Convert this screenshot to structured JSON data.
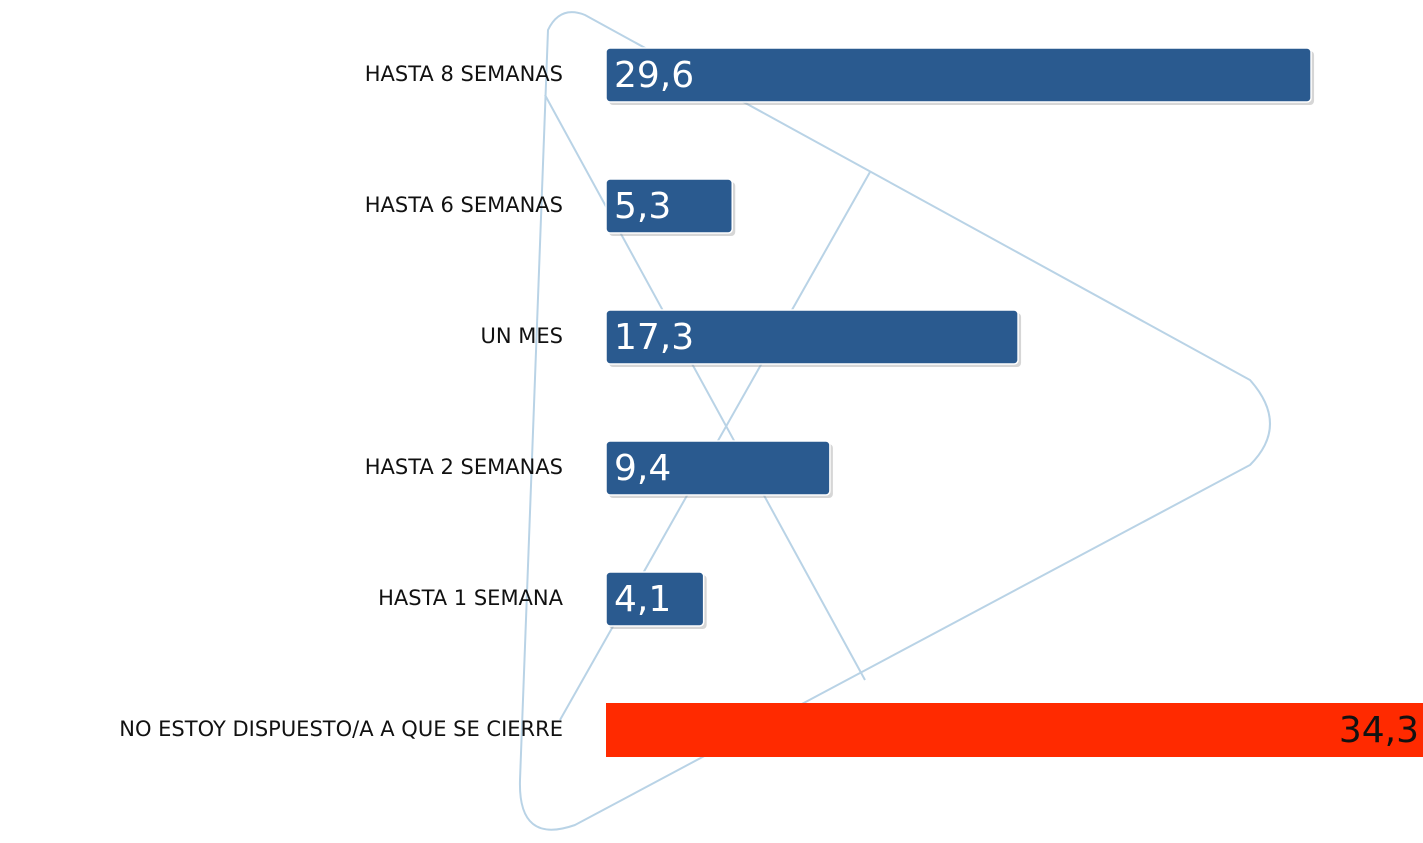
{
  "chart_data": {
    "type": "bar",
    "orientation": "horizontal",
    "categories": [
      "HASTA 8 SEMANAS",
      "HASTA 6 SEMANAS",
      "UN MES",
      "HASTA 2 SEMANAS",
      "HASTA 1 SEMANA",
      "NO ESTOY DISPUESTO/A A QUE SE CIERRE"
    ],
    "values": [
      29.6,
      5.3,
      17.3,
      9.4,
      4.1,
      34.3
    ],
    "value_labels": [
      "29,6",
      "5,3",
      "17,3",
      "9,4",
      "4,1",
      "34,3"
    ],
    "colors": [
      "#2a5a8f",
      "#2a5a8f",
      "#2a5a8f",
      "#2a5a8f",
      "#2a5a8f",
      "#ff2a00"
    ]
  }
}
